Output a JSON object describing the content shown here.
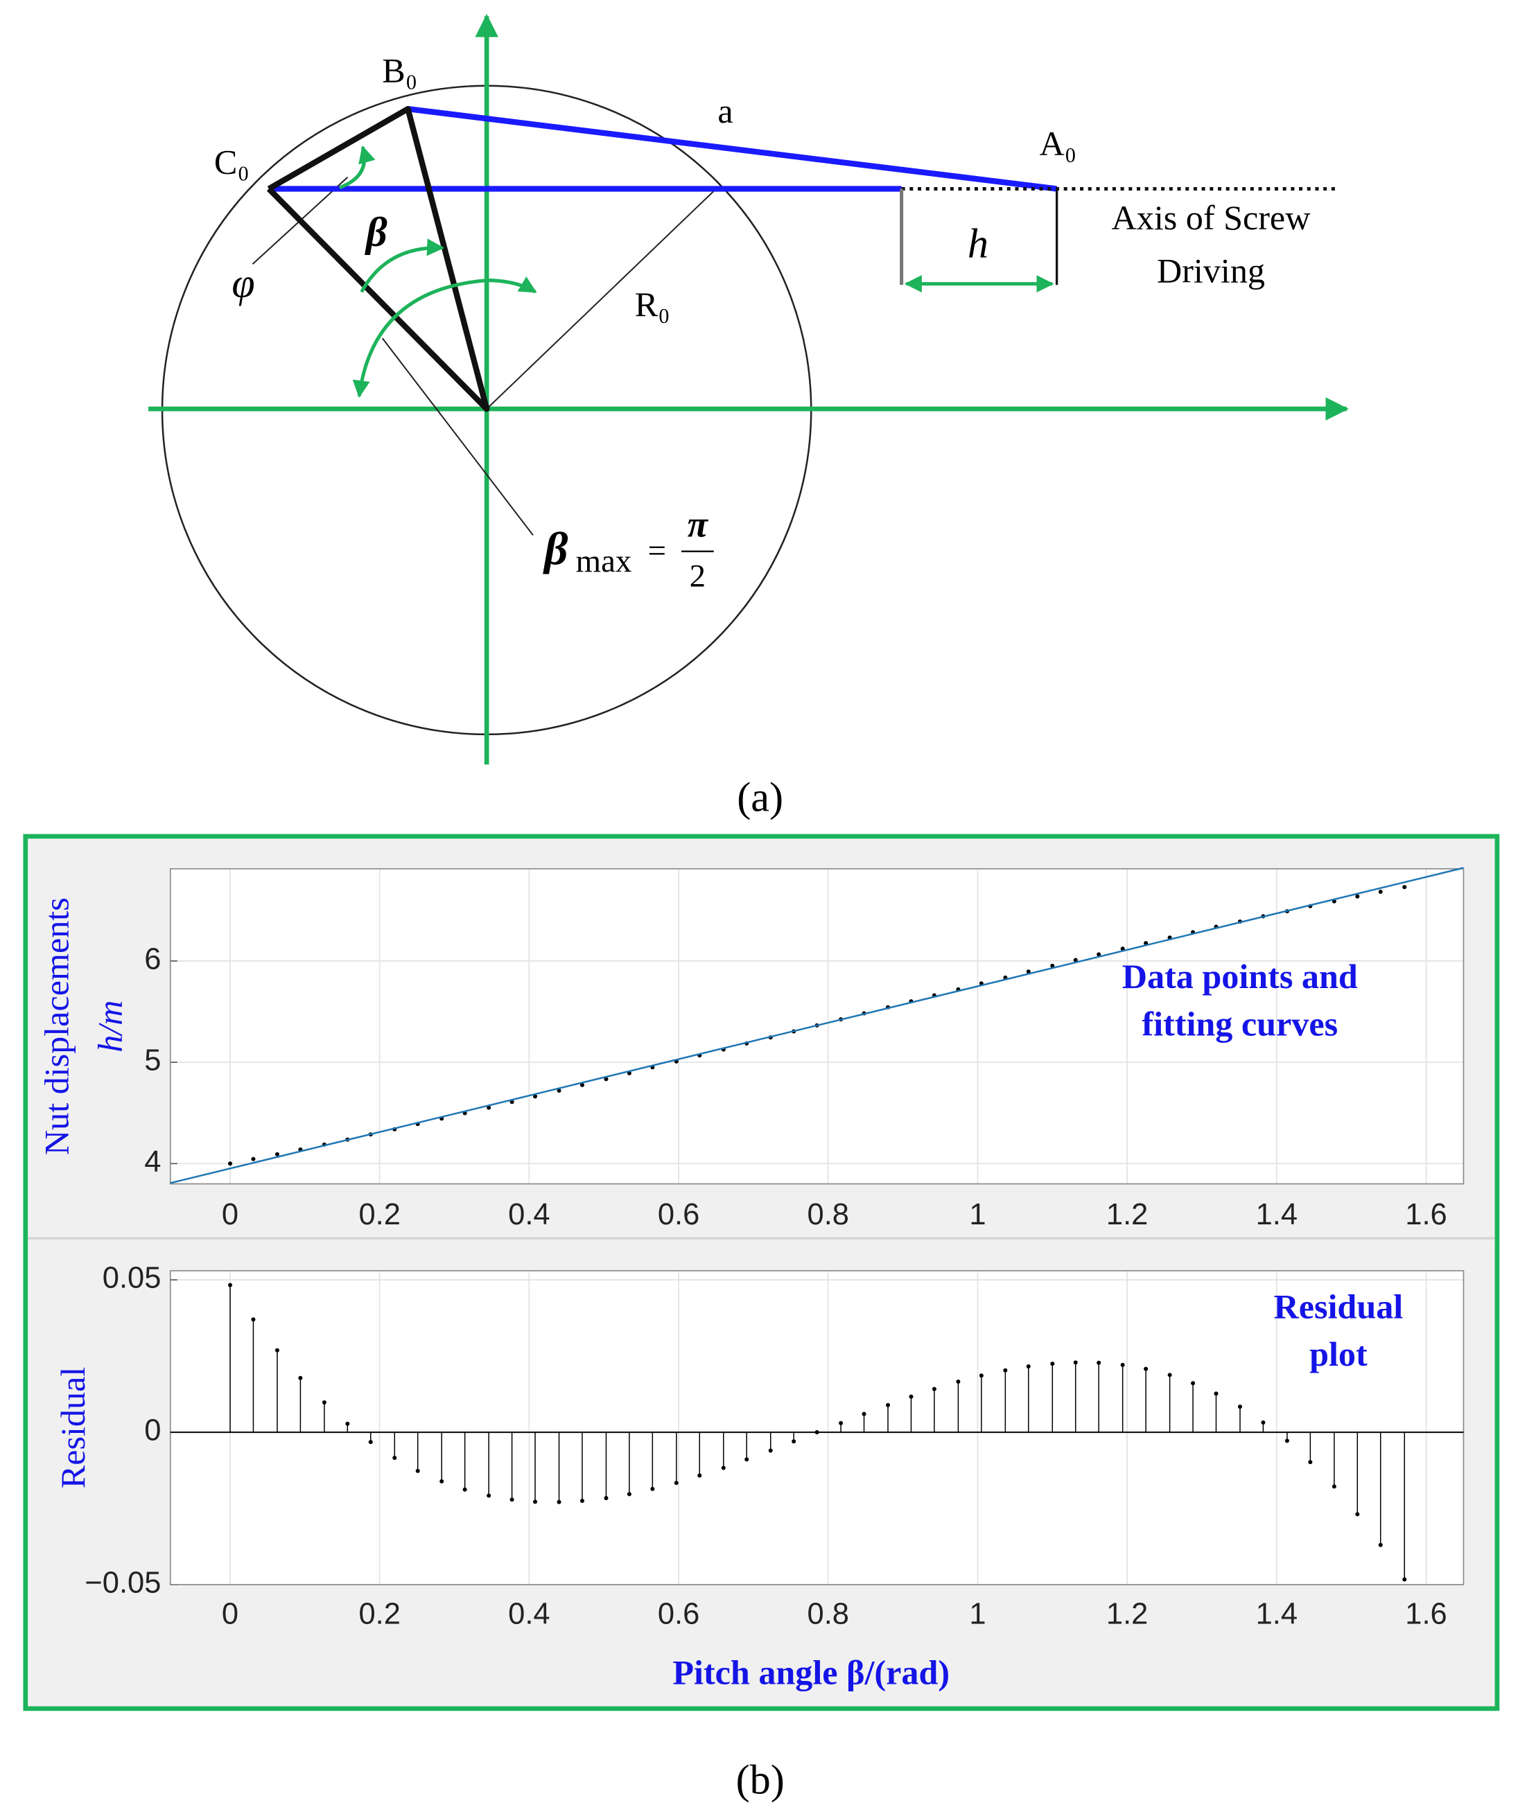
{
  "diagram": {
    "b0": "B₀",
    "c0": "C₀",
    "a0": "A₀",
    "a": "a",
    "h": "h",
    "r0": "R₀",
    "beta": "β",
    "phi": "φ",
    "axis_label": [
      "Axis of Screw",
      "Driving"
    ],
    "beta_max": {
      "symbol": "β",
      "subscript": "max",
      "equals": "=",
      "numerator": "π",
      "denominator": "2"
    }
  },
  "captions": [
    "(a)",
    "(b)"
  ],
  "chart_data": [
    {
      "type": "line",
      "y_label": [
        "Nut displacements",
        "h/m"
      ],
      "annotation": [
        "Data points and",
        "fitting curves"
      ],
      "x": [
        0,
        0.031,
        0.063,
        0.094,
        0.126,
        0.157,
        0.188,
        0.22,
        0.251,
        0.283,
        0.314,
        0.346,
        0.377,
        0.408,
        0.44,
        0.471,
        0.503,
        0.534,
        0.565,
        0.597,
        0.628,
        0.66,
        0.691,
        0.723,
        0.754,
        0.785,
        0.817,
        0.848,
        0.88,
        0.911,
        0.942,
        0.974,
        1.005,
        1.037,
        1.068,
        1.1,
        1.131,
        1.162,
        1.194,
        1.225,
        1.257,
        1.288,
        1.319,
        1.351,
        1.382,
        1.414,
        1.445,
        1.477,
        1.508,
        1.539,
        1.571
      ],
      "series": [
        {
          "color": "#000000",
          "marker": "dot",
          "values": [
            4.0,
            4.045,
            4.092,
            4.139,
            4.188,
            4.237,
            4.288,
            4.339,
            4.391,
            4.444,
            4.498,
            4.552,
            4.608,
            4.663,
            4.72,
            4.776,
            4.834,
            4.892,
            4.95,
            5.008,
            5.068,
            5.126,
            5.186,
            5.245,
            5.305,
            5.364,
            5.424,
            5.483,
            5.543,
            5.602,
            5.661,
            5.72,
            5.779,
            5.836,
            5.895,
            5.952,
            6.009,
            6.065,
            6.121,
            6.176,
            6.231,
            6.284,
            6.338,
            6.389,
            6.441,
            6.491,
            6.541,
            6.589,
            6.637,
            6.683,
            6.729
          ]
        },
        {
          "color": "#1f77b4",
          "marker": "line",
          "x": [
            -0.08,
            1.65
          ],
          "values": [
            3.808,
            6.919
          ]
        }
      ],
      "xlim": [
        -0.08,
        1.65
      ],
      "ylim": [
        3.8,
        6.91
      ],
      "xticks": [
        0,
        0.2,
        0.4,
        0.6,
        0.8,
        1,
        1.2,
        1.4,
        1.6
      ],
      "yticks": [
        4,
        5,
        6
      ],
      "grid": true
    },
    {
      "type": "stem",
      "y_label": [
        "Residual"
      ],
      "x_label": "Pitch angle β/(rad)",
      "annotation": [
        "Residual",
        "plot"
      ],
      "x": [
        0,
        0.031,
        0.063,
        0.094,
        0.126,
        0.157,
        0.188,
        0.22,
        0.251,
        0.283,
        0.314,
        0.346,
        0.377,
        0.408,
        0.44,
        0.471,
        0.503,
        0.534,
        0.565,
        0.597,
        0.628,
        0.66,
        0.691,
        0.723,
        0.754,
        0.785,
        0.817,
        0.848,
        0.88,
        0.911,
        0.942,
        0.974,
        1.005,
        1.037,
        1.068,
        1.1,
        1.131,
        1.162,
        1.194,
        1.225,
        1.257,
        1.288,
        1.319,
        1.351,
        1.382,
        1.414,
        1.445,
        1.477,
        1.508,
        1.539,
        1.571
      ],
      "values": [
        0.0483,
        0.037,
        0.0269,
        0.0178,
        0.0098,
        0.0028,
        -0.0032,
        -0.0084,
        -0.0127,
        -0.0161,
        -0.0188,
        -0.0208,
        -0.0221,
        -0.0228,
        -0.0229,
        -0.0225,
        -0.0216,
        -0.0203,
        -0.0186,
        -0.0166,
        -0.0142,
        -0.0117,
        -0.0089,
        -0.006,
        -0.003,
        0,
        0.003,
        0.006,
        0.0089,
        0.0117,
        0.0142,
        0.0166,
        0.0186,
        0.0203,
        0.0216,
        0.0225,
        0.0229,
        0.0228,
        0.0221,
        0.0208,
        0.0188,
        0.0161,
        0.0127,
        0.0084,
        0.0032,
        -0.0028,
        -0.0098,
        -0.0178,
        -0.0269,
        -0.037,
        -0.0483
      ],
      "color": "#000000",
      "xlim": [
        -0.08,
        1.65
      ],
      "ylim": [
        -0.05,
        0.053
      ],
      "xticks": [
        0,
        0.2,
        0.4,
        0.6,
        0.8,
        1,
        1.2,
        1.4,
        1.6
      ],
      "yticks": [
        {
          "value": -0.05,
          "label": "−0.05"
        },
        0,
        0.05
      ],
      "grid": true
    }
  ]
}
